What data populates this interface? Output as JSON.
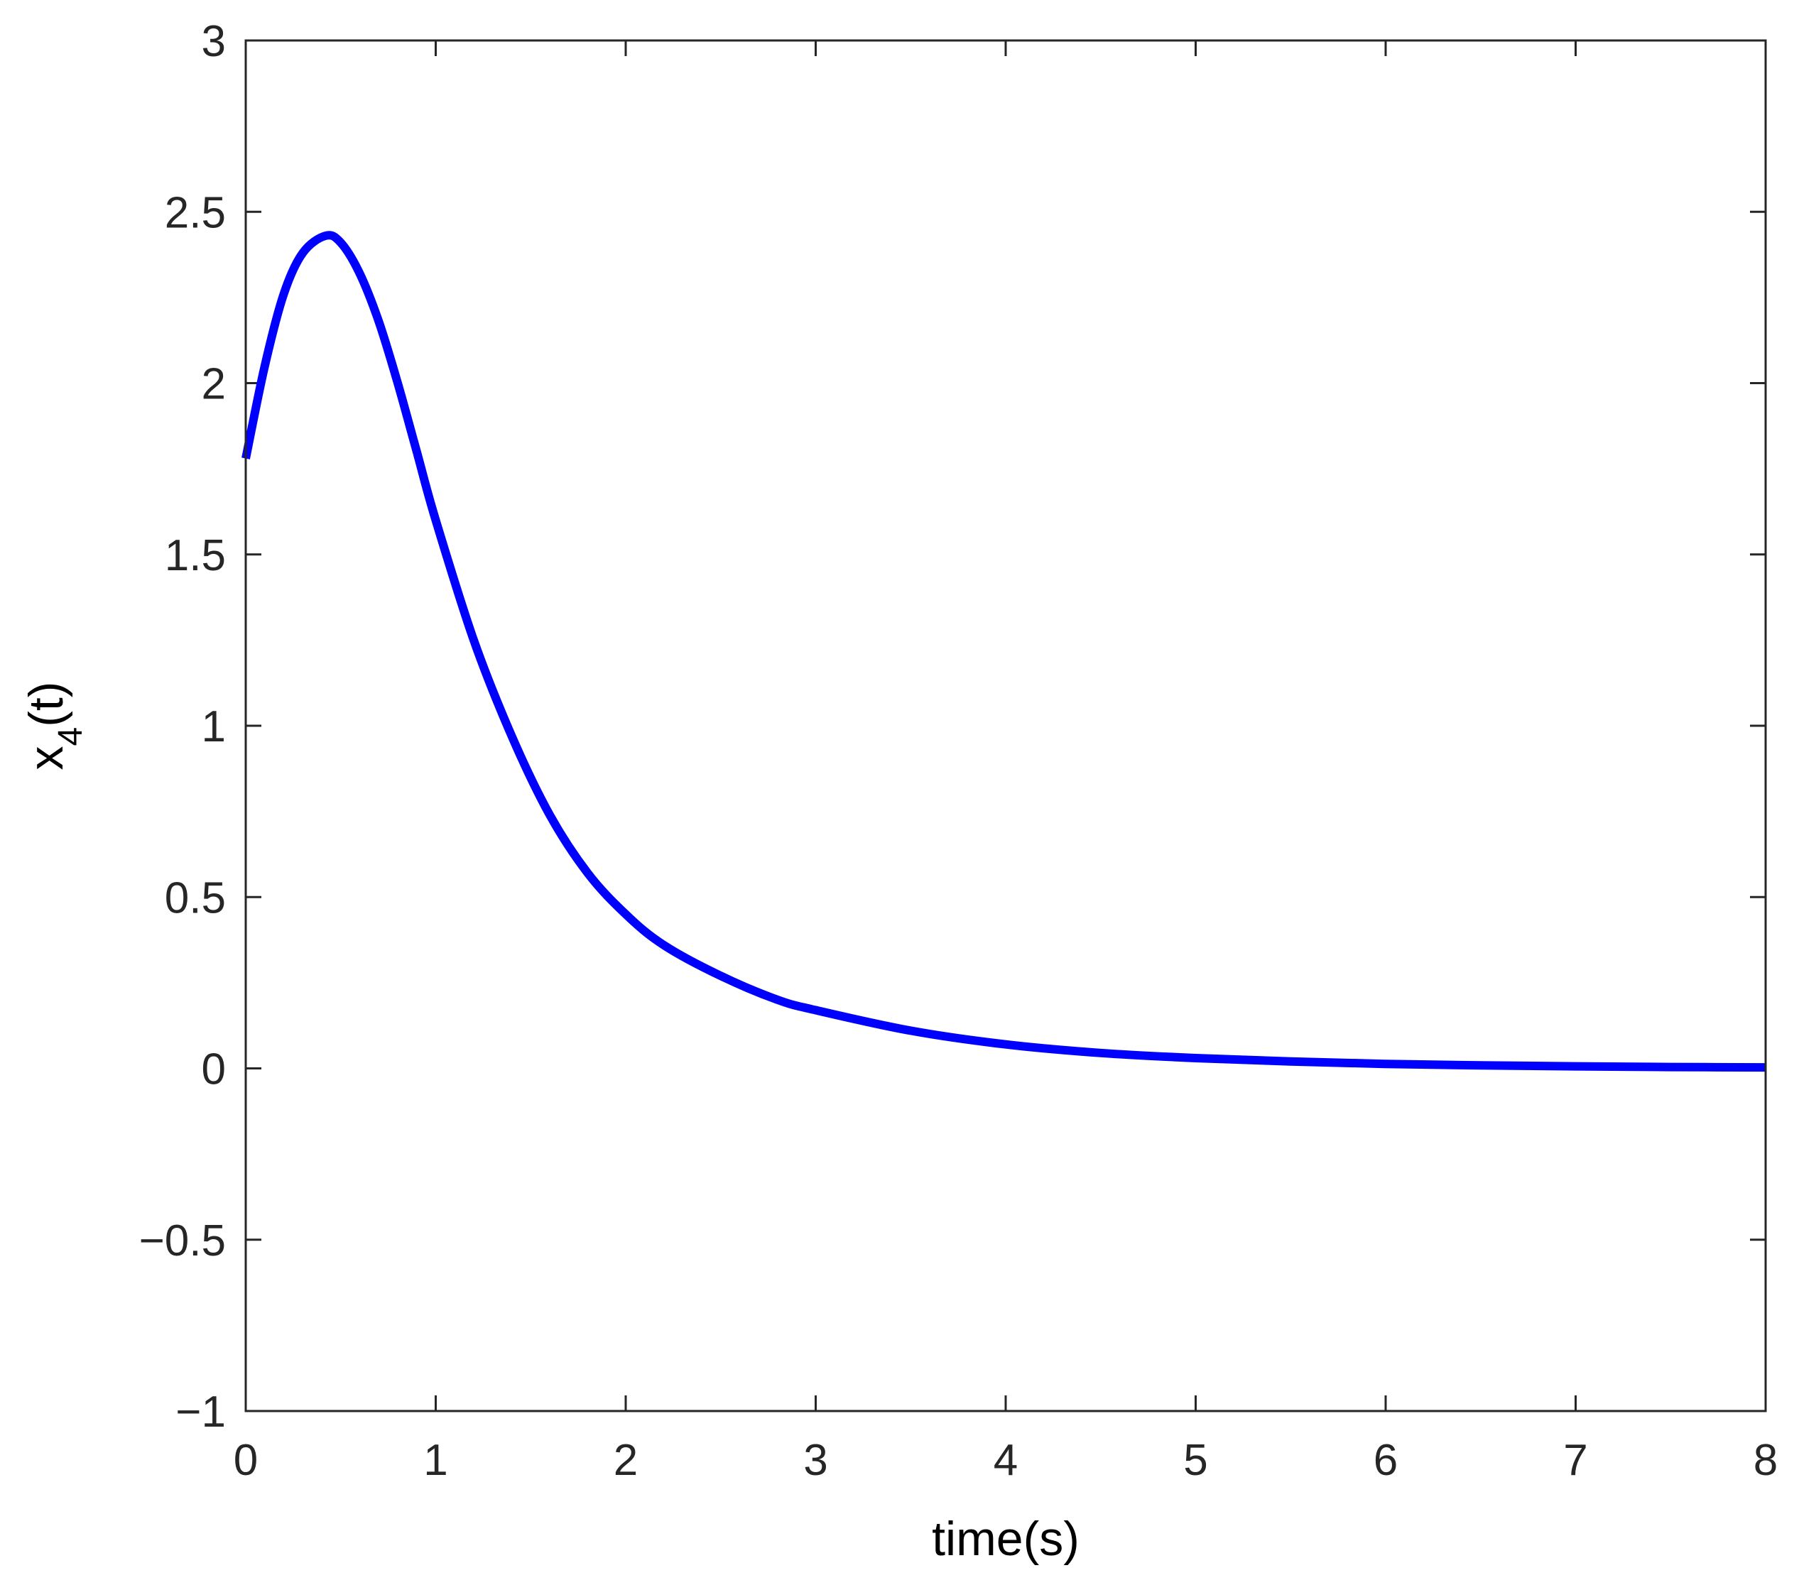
{
  "chart_data": {
    "type": "line",
    "title": "",
    "xlabel": "time(s)",
    "ylabel": {
      "main": "x",
      "subscript": "4",
      "suffix": "(t)"
    },
    "xlim": [
      0,
      8
    ],
    "ylim": [
      -1,
      3
    ],
    "xticks": [
      0,
      1,
      2,
      3,
      4,
      5,
      6,
      7,
      8
    ],
    "yticks": [
      -1,
      -0.5,
      0,
      0.5,
      1,
      1.5,
      2,
      2.5,
      3
    ],
    "xtick_labels": [
      "0",
      "1",
      "2",
      "3",
      "4",
      "5",
      "6",
      "7",
      "8"
    ],
    "ytick_labels": [
      "−1",
      "−0.5",
      "0",
      "0.5",
      "1",
      "1.5",
      "2",
      "2.5",
      "3"
    ],
    "grid": false,
    "legend": "none",
    "line_color": "#0000ff",
    "axes_color": "#262626",
    "series": [
      {
        "x": [
          0,
          0.1,
          0.2,
          0.3,
          0.42,
          0.5,
          0.6,
          0.7,
          0.8,
          0.9,
          1.0,
          1.2,
          1.4,
          1.6,
          1.8,
          2.0,
          2.2,
          2.5,
          2.8,
          3.0,
          3.5,
          4.0,
          4.5,
          5.0,
          5.5,
          6.0,
          6.5,
          7.0,
          7.5,
          8.0
        ],
        "y": [
          1.78,
          2.05,
          2.26,
          2.38,
          2.43,
          2.41,
          2.32,
          2.18,
          2.0,
          1.8,
          1.6,
          1.25,
          0.97,
          0.74,
          0.57,
          0.45,
          0.36,
          0.27,
          0.2,
          0.17,
          0.11,
          0.07,
          0.045,
          0.03,
          0.02,
          0.013,
          0.009,
          0.006,
          0.004,
          0.003
        ]
      }
    ]
  }
}
